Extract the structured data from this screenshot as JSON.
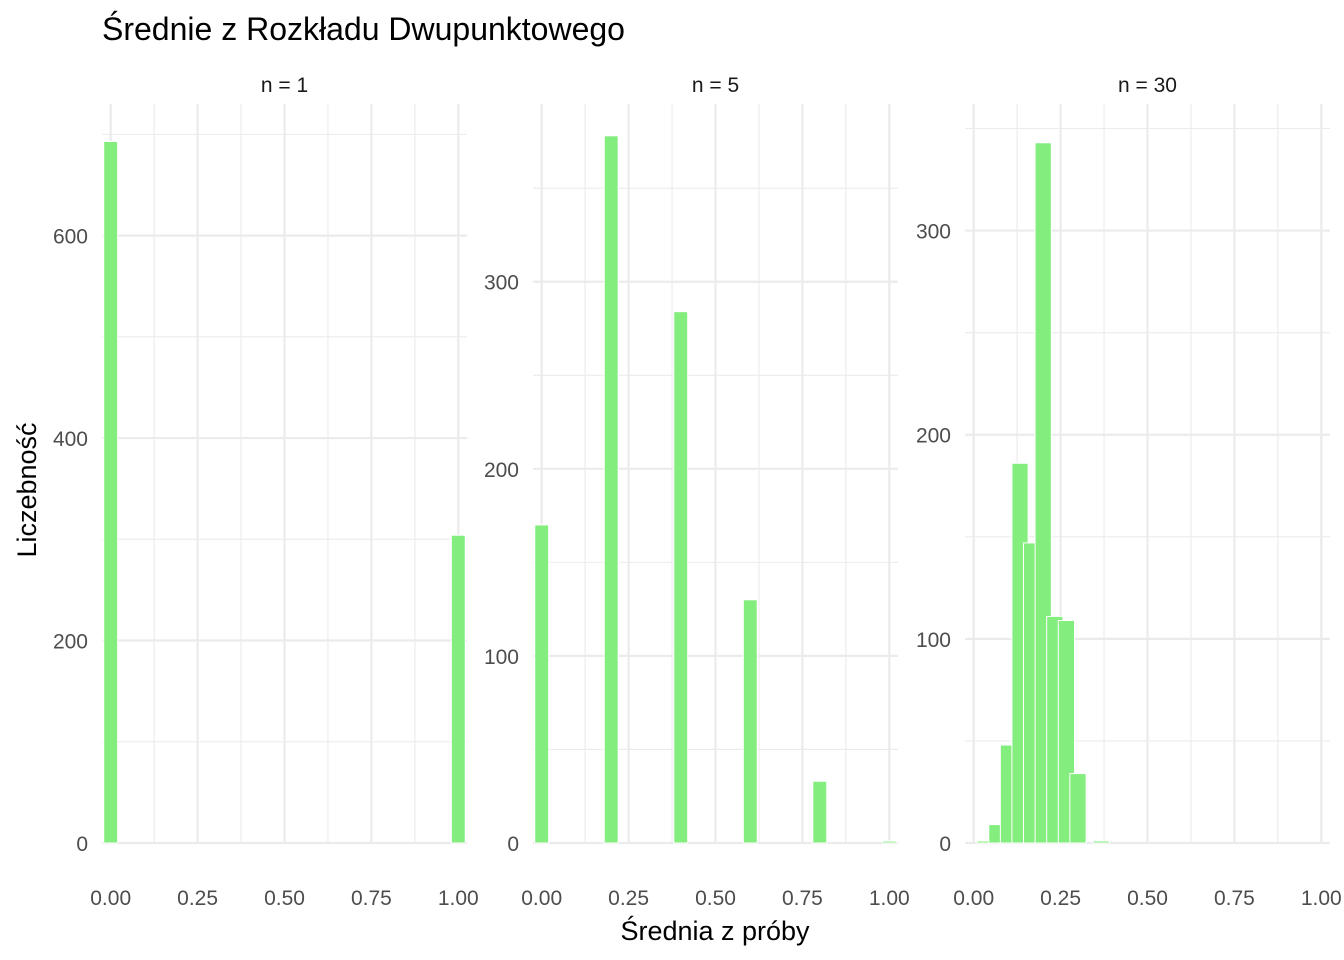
{
  "chart_data": {
    "type": "bar",
    "title": "Średnie z Rozkładu Dwupunktowego",
    "xlabel": "Średnia z próby",
    "ylabel": "Liczebność",
    "bar_color": "#83ed7e",
    "grid": true,
    "legend": "none",
    "x_ticks": [
      "0.00",
      "0.25",
      "0.50",
      "0.75",
      "1.00"
    ],
    "x_tick_values": [
      0,
      0.25,
      0.5,
      0.75,
      1.0
    ],
    "xlim": [
      -0.025,
      1.025
    ],
    "panels": [
      {
        "label": "n = 1",
        "ylim": [
          0,
          730
        ],
        "y_ticks": [
          0,
          200,
          400,
          600
        ],
        "bar_width": 0.04,
        "x": [
          0.0,
          1.0
        ],
        "values": [
          693,
          304
        ]
      },
      {
        "label": "n = 5",
        "ylim": [
          0,
          395
        ],
        "y_ticks": [
          0,
          100,
          200,
          300
        ],
        "bar_width": 0.04,
        "x": [
          0.0,
          0.2,
          0.4,
          0.6,
          0.8,
          1.0
        ],
        "values": [
          170,
          378,
          284,
          130,
          33,
          1
        ]
      },
      {
        "label": "n = 30",
        "ylim": [
          0,
          362
        ],
        "y_ticks": [
          0,
          100,
          200,
          300
        ],
        "bar_width": 0.0467,
        "x": [
          0.0333,
          0.0667,
          0.1,
          0.1333,
          0.1667,
          0.2,
          0.2333,
          0.2667,
          0.3,
          0.3333,
          0.3667,
          0.4,
          0.4333,
          0.4667,
          0.5,
          0.5333
        ],
        "values": [
          1,
          9,
          48,
          186,
          147,
          343,
          111,
          109,
          34,
          0,
          1,
          0,
          0,
          0,
          0,
          0
        ]
      }
    ]
  }
}
